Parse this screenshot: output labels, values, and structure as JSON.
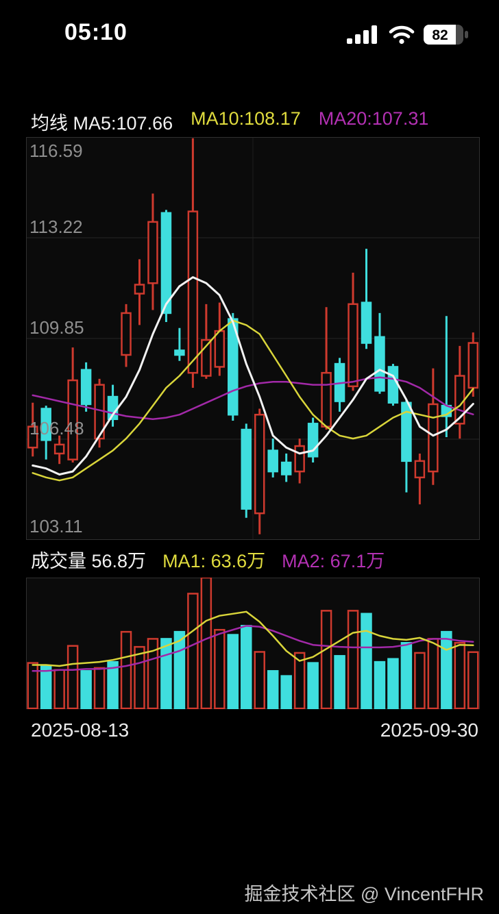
{
  "status_bar": {
    "time": "05:10",
    "battery_percent": "82"
  },
  "kline_header": {
    "title": "均线 MA5:107.66",
    "ma10_label": "MA10:108.17",
    "ma20_label": "MA20:107.31"
  },
  "volume_header": {
    "volume_label": "成交量 56.8万",
    "ma1_label": "MA1: 63.6万",
    "ma2_label": "MA2: 67.1万"
  },
  "x_axis": {
    "start_date": "2025-08-13",
    "end_date": "2025-09-30"
  },
  "footer": {
    "credit": "掘金技术社区 @ VincentFHR"
  },
  "colors": {
    "up": "#cf3a2e",
    "down": "#3fdede",
    "ma5": "#f2f2f2",
    "ma10": "#d9d53a",
    "ma20": "#a229a8",
    "grid": "#262626",
    "border": "#303030",
    "panel_bg": "#0b0b0b"
  },
  "chart_data": [
    {
      "type": "candlestick",
      "title": "均线 (daily K-line)",
      "legend": [
        "MA5",
        "MA10",
        "MA20"
      ],
      "x_range": [
        "2025-08-13",
        "2025-09-30"
      ],
      "ylim": [
        103.11,
        116.59
      ],
      "grid": true,
      "y_axis_labels": [
        "116.59",
        "113.22",
        "109.85",
        "106.48",
        "103.11"
      ],
      "candles": [
        {
          "o": 106.2,
          "c": 106.9,
          "h": 107.7,
          "l": 105.9
        },
        {
          "o": 107.5,
          "c": 106.45,
          "h": 107.6,
          "l": 105.8
        },
        {
          "o": 106.0,
          "c": 106.3,
          "h": 106.6,
          "l": 105.65
        },
        {
          "o": 105.8,
          "c": 108.45,
          "h": 109.55,
          "l": 105.7
        },
        {
          "o": 108.8,
          "c": 107.65,
          "h": 109.05,
          "l": 107.4
        },
        {
          "o": 106.5,
          "c": 108.3,
          "h": 108.5,
          "l": 106.2
        },
        {
          "o": 107.9,
          "c": 107.15,
          "h": 108.3,
          "l": 106.9
        },
        {
          "o": 109.3,
          "c": 110.7,
          "h": 111.0,
          "l": 108.9
        },
        {
          "o": 111.35,
          "c": 111.65,
          "h": 112.5,
          "l": 110.3
        },
        {
          "o": 111.7,
          "c": 113.75,
          "h": 114.7,
          "l": 110.8
        },
        {
          "o": 114.05,
          "c": 110.7,
          "h": 114.15,
          "l": 110.4
        },
        {
          "o": 109.45,
          "c": 109.3,
          "h": 110.2,
          "l": 109.1
        },
        {
          "o": 108.7,
          "c": 114.1,
          "h": 116.55,
          "l": 108.2
        },
        {
          "o": 108.6,
          "c": 109.8,
          "h": 111.0,
          "l": 108.5
        },
        {
          "o": 108.9,
          "c": 110.1,
          "h": 111.05,
          "l": 108.6
        },
        {
          "o": 110.5,
          "c": 107.3,
          "h": 110.7,
          "l": 107.1
        },
        {
          "o": 106.8,
          "c": 104.15,
          "h": 107.0,
          "l": 103.85
        },
        {
          "o": 104.0,
          "c": 107.3,
          "h": 107.5,
          "l": 103.3
        },
        {
          "o": 106.1,
          "c": 105.4,
          "h": 106.5,
          "l": 105.2
        },
        {
          "o": 105.7,
          "c": 105.3,
          "h": 106.0,
          "l": 105.05
        },
        {
          "o": 105.4,
          "c": 106.25,
          "h": 106.5,
          "l": 105.0
        },
        {
          "o": 107.0,
          "c": 105.9,
          "h": 107.2,
          "l": 105.7
        },
        {
          "o": 106.9,
          "c": 108.7,
          "h": 110.9,
          "l": 106.8
        },
        {
          "o": 109.0,
          "c": 107.75,
          "h": 109.2,
          "l": 107.4
        },
        {
          "o": 108.25,
          "c": 111.0,
          "h": 112.05,
          "l": 108.1
        },
        {
          "o": 111.05,
          "c": 109.7,
          "h": 112.85,
          "l": 109.5
        },
        {
          "o": 109.9,
          "c": 108.1,
          "h": 110.7,
          "l": 108.0
        },
        {
          "o": 108.9,
          "c": 107.7,
          "h": 109.0,
          "l": 107.6
        },
        {
          "o": 107.7,
          "c": 105.75,
          "h": 107.8,
          "l": 104.7
        },
        {
          "o": 105.2,
          "c": 105.75,
          "h": 106.0,
          "l": 104.3
        },
        {
          "o": 105.4,
          "c": 107.65,
          "h": 108.85,
          "l": 104.95
        },
        {
          "o": 107.6,
          "c": 107.25,
          "h": 110.6,
          "l": 106.55
        },
        {
          "o": 107.0,
          "c": 108.6,
          "h": 109.6,
          "l": 106.5
        },
        {
          "o": 108.2,
          "c": 109.7,
          "h": 110.05,
          "l": 107.9
        }
      ],
      "ma5": [
        105.6,
        105.5,
        105.3,
        105.4,
        105.9,
        106.6,
        107.3,
        107.9,
        108.8,
        110.0,
        111.0,
        111.6,
        111.9,
        111.7,
        111.3,
        110.4,
        109.0,
        107.9,
        106.6,
        106.2,
        106.0,
        106.1,
        106.6,
        107.2,
        107.8,
        108.5,
        108.8,
        108.6,
        107.8,
        106.9,
        106.6,
        106.8,
        107.2,
        107.66
      ],
      "ma10": [
        105.35,
        105.2,
        105.1,
        105.2,
        105.5,
        105.8,
        106.1,
        106.5,
        107.0,
        107.6,
        108.2,
        108.6,
        109.1,
        109.6,
        110.1,
        110.45,
        110.3,
        110.0,
        109.3,
        108.6,
        107.9,
        107.3,
        106.9,
        106.6,
        106.5,
        106.6,
        106.9,
        107.2,
        107.4,
        107.3,
        107.2,
        107.3,
        107.6,
        108.17
      ],
      "ma20": [
        107.95,
        107.85,
        107.75,
        107.65,
        107.55,
        107.45,
        107.35,
        107.25,
        107.2,
        107.15,
        107.2,
        107.3,
        107.5,
        107.7,
        107.9,
        108.1,
        108.25,
        108.35,
        108.4,
        108.4,
        108.35,
        108.3,
        108.3,
        108.35,
        108.4,
        108.5,
        108.55,
        108.5,
        108.4,
        108.2,
        107.9,
        107.6,
        107.45,
        107.31
      ]
    },
    {
      "type": "bar",
      "title": "成交量 (volume, 万)",
      "legend": [
        "MA1",
        "MA2"
      ],
      "current_volume": 56.8,
      "ylim": [
        0,
        131
      ],
      "values": [
        46,
        43,
        39,
        63,
        38,
        41,
        47,
        77,
        62,
        70,
        70,
        77,
        115,
        131,
        79,
        74,
        83,
        57,
        38,
        33,
        56,
        46,
        98,
        53,
        98,
        95,
        47,
        50,
        66,
        56,
        70,
        77,
        66,
        56.8
      ],
      "vol_ma1": [
        44,
        44,
        43,
        45,
        46,
        47,
        49,
        52,
        55,
        58,
        63,
        68,
        78,
        88,
        93,
        95,
        97,
        87,
        73,
        58,
        48,
        52,
        60,
        68,
        76,
        78,
        73,
        70,
        69,
        71,
        66,
        59,
        64,
        63.6
      ],
      "vol_ma2": [
        38,
        38,
        39,
        39,
        40,
        40,
        41,
        43,
        46,
        50,
        54,
        58,
        64,
        70,
        75,
        79,
        83,
        82,
        78,
        73,
        68,
        64,
        63,
        62,
        61.5,
        61.5,
        61.5,
        62,
        64,
        68,
        70,
        70,
        68,
        67.1
      ]
    }
  ]
}
